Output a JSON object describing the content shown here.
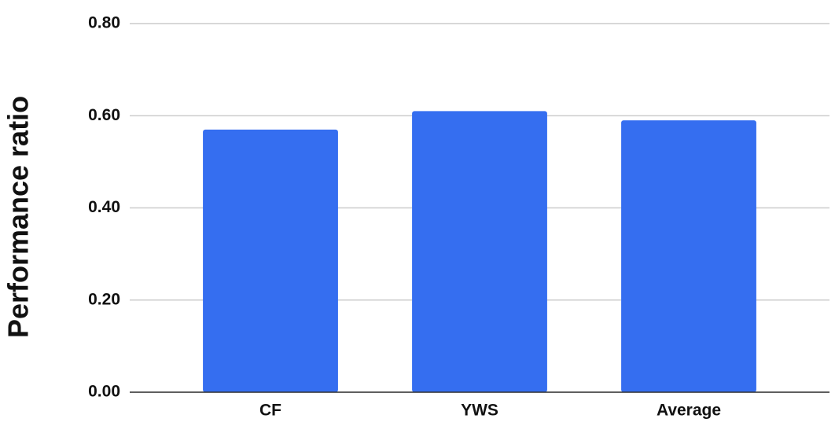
{
  "chart_data": {
    "type": "bar",
    "y_axis_label": "Performance ratio",
    "categories": [
      "CF",
      "YWS",
      "Average"
    ],
    "values": [
      0.57,
      0.61,
      0.59
    ],
    "color": "#356ef0",
    "ylim": [
      0,
      0.8
    ],
    "yticks": [
      {
        "value": 0,
        "label": "0.00"
      },
      {
        "value": 0.2,
        "label": "0.20"
      },
      {
        "value": 0.4,
        "label": "0.40"
      },
      {
        "value": 0.6,
        "label": "0.60"
      },
      {
        "value": 0.8,
        "label": "0.80"
      }
    ],
    "grid": true
  }
}
